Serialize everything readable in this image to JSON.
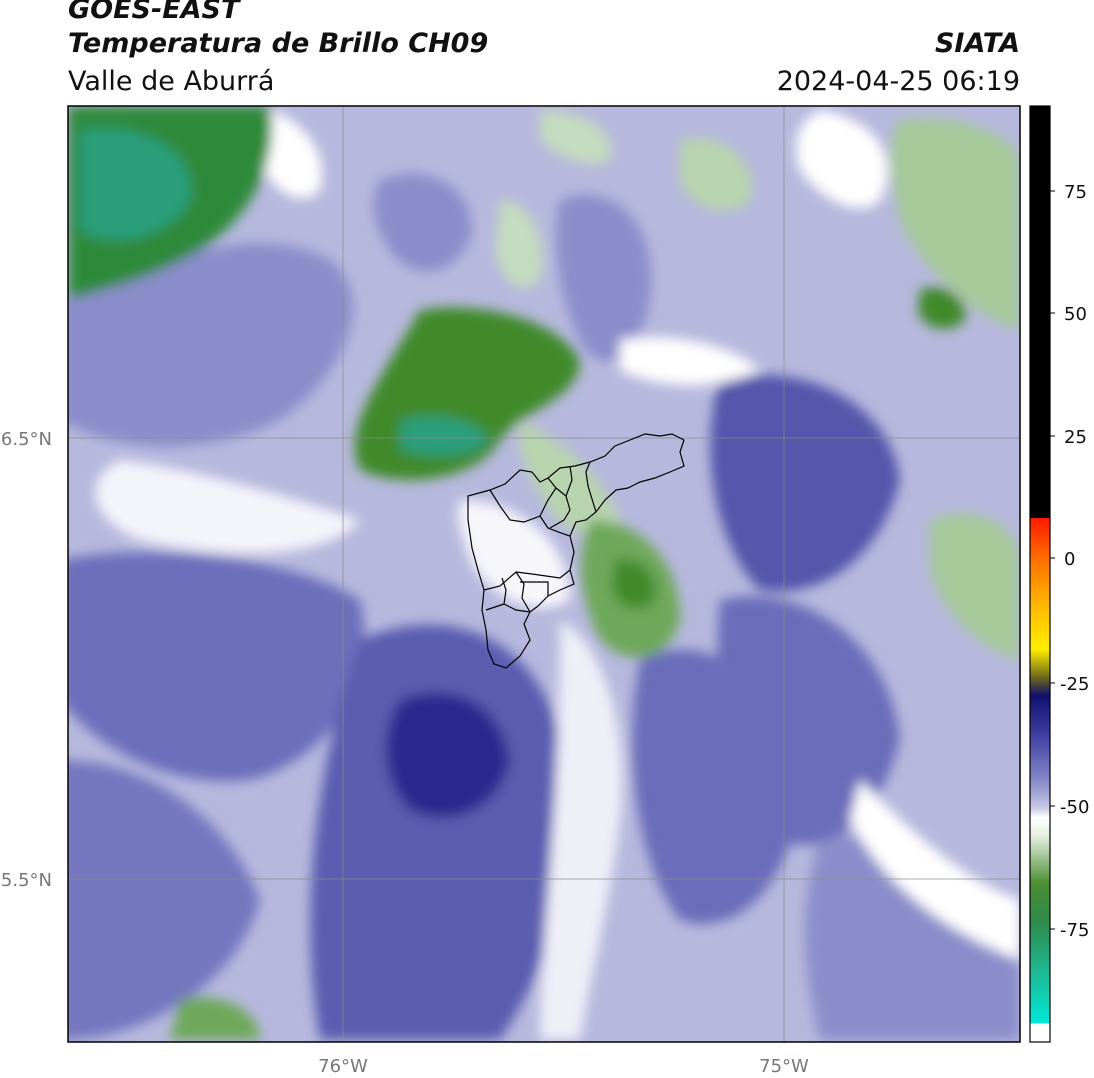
{
  "header": {
    "satellite": "GOES-EAST",
    "product": "Temperatura de Brillo CH09",
    "region": "Valle de Aburrá",
    "brand": "SIATA",
    "datetime": "2024-04-25 06:19"
  },
  "axes": {
    "lat_ticks": [
      "6.5°N",
      "5.5°N"
    ],
    "lon_ticks": [
      "76°W",
      "75°W"
    ]
  },
  "colorbar": {
    "ticks": [
      "75",
      "50",
      "25",
      "0",
      "-25",
      "-50",
      "-75"
    ],
    "colors": {
      "black": "#000000",
      "red": "#ff2000",
      "orange": "#ff9a00",
      "yellow": "#ffee00",
      "olive": "#6f6a1a",
      "navy": "#10106e",
      "blue": "#3c3ca0",
      "lavender": "#b0b2d8",
      "white": "#ffffff",
      "green": "#3f8a2a",
      "teal": "#20b48c",
      "cyan": "#00e8d8"
    }
  },
  "map_colors": {
    "white": "#ffffff",
    "light_lavender": "#d4d5ea",
    "lavender": "#a9abd6",
    "purple": "#7b7ec4",
    "blue": "#5457ac",
    "dark_blue": "#2a2c8e",
    "light_green": "#c4dcbf",
    "green": "#6ea85a",
    "dark_green": "#3f8a2a",
    "teal": "#2a9f7a"
  }
}
